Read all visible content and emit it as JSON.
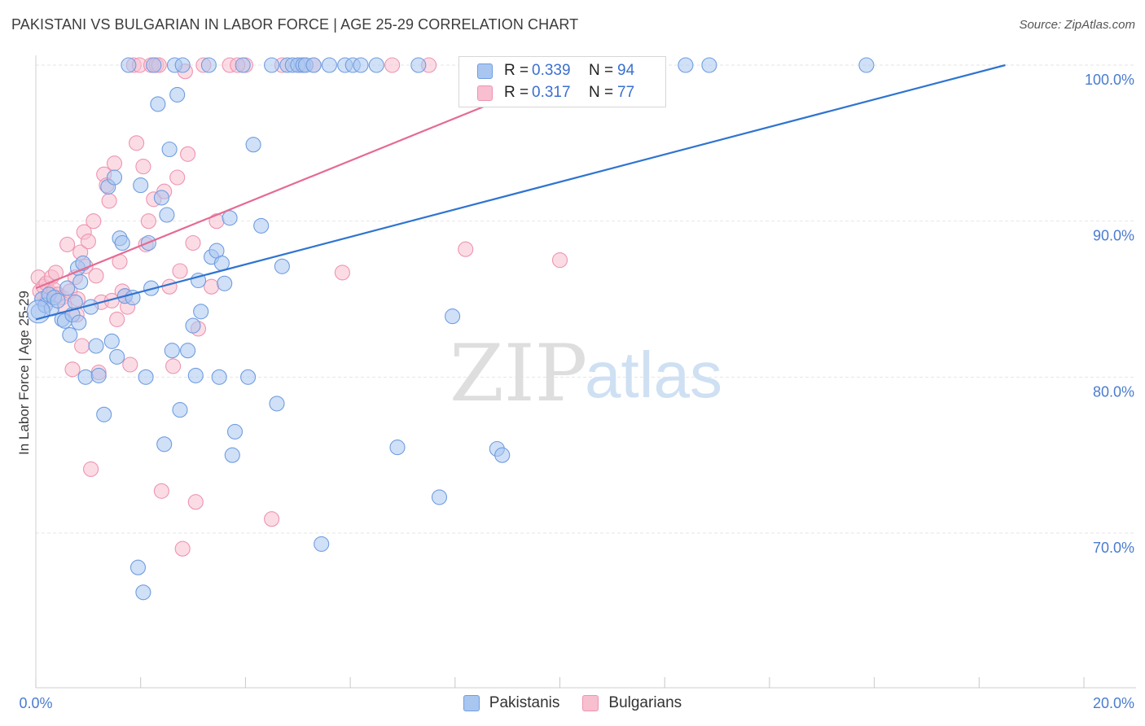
{
  "header": {
    "title": "PAKISTANI VS BULGARIAN IN LABOR FORCE | AGE 25-29 CORRELATION CHART",
    "source": "Source: ZipAtlas.com"
  },
  "watermark": {
    "zip": "ZIP",
    "atlas": "atlas"
  },
  "legend": {
    "rows": [
      {
        "r_label": "R =",
        "r_value": "0.339",
        "n_label": "N =",
        "n_value": "94",
        "color": "#7ea9e6"
      },
      {
        "r_label": "R =",
        "r_value": "0.317",
        "n_label": "N =",
        "n_value": "77",
        "color": "#f3a3bb"
      }
    ],
    "bottom": [
      "Pakistanis",
      "Bulgarians"
    ]
  },
  "colors": {
    "blue_fill": "#a9c6f1",
    "blue_stroke": "#6f9de0",
    "blue_line": "#2f74d0",
    "pink_fill": "#f7bfd0",
    "pink_stroke": "#ee94b1",
    "pink_line": "#e56b93",
    "grid": "#e6e6e6",
    "tick_text": "#4a7bd0"
  },
  "chart_data": {
    "type": "scatter",
    "title": "PAKISTANI VS BULGARIAN IN LABOR FORCE | AGE 25-29 CORRELATION CHART",
    "xlabel": "",
    "ylabel": "In Labor Force | Age 25-29",
    "xlim": [
      0,
      20
    ],
    "ylim": [
      60.5,
      100.8
    ],
    "x_tick_labels": [
      "0.0%",
      "20.0%"
    ],
    "y_ticks": [
      70,
      80,
      90,
      100
    ],
    "y_tick_labels": [
      "70.0%",
      "80.0%",
      "90.0%",
      "100.0%"
    ],
    "grid": true,
    "series": [
      {
        "name": "Pakistanis",
        "r": 0.339,
        "n": 94,
        "trend": {
          "x": [
            0,
            18.5
          ],
          "y": [
            83.7,
            100.0
          ]
        },
        "points": [
          [
            0.05,
            84.2
          ],
          [
            0.12,
            85.0
          ],
          [
            0.18,
            84.6
          ],
          [
            0.25,
            85.3
          ],
          [
            0.3,
            84.4
          ],
          [
            0.35,
            85.1
          ],
          [
            0.42,
            84.9
          ],
          [
            0.5,
            83.7
          ],
          [
            0.55,
            83.6
          ],
          [
            0.6,
            85.7
          ],
          [
            0.65,
            82.7
          ],
          [
            0.7,
            84.0
          ],
          [
            0.75,
            84.8
          ],
          [
            0.8,
            87.0
          ],
          [
            0.82,
            83.5
          ],
          [
            0.85,
            86.1
          ],
          [
            0.9,
            87.3
          ],
          [
            0.95,
            80.0
          ],
          [
            1.05,
            84.5
          ],
          [
            1.15,
            82.0
          ],
          [
            1.2,
            80.1
          ],
          [
            1.3,
            77.6
          ],
          [
            1.38,
            92.2
          ],
          [
            1.45,
            82.3
          ],
          [
            1.5,
            92.8
          ],
          [
            1.55,
            81.3
          ],
          [
            1.6,
            88.9
          ],
          [
            1.65,
            88.6
          ],
          [
            1.7,
            85.2
          ],
          [
            1.77,
            100.0
          ],
          [
            1.85,
            85.1
          ],
          [
            1.95,
            67.8
          ],
          [
            2.0,
            92.3
          ],
          [
            2.05,
            66.2
          ],
          [
            2.1,
            80.0
          ],
          [
            2.15,
            88.6
          ],
          [
            2.2,
            85.7
          ],
          [
            2.25,
            100.0
          ],
          [
            2.33,
            97.5
          ],
          [
            2.4,
            91.5
          ],
          [
            2.45,
            75.7
          ],
          [
            2.5,
            90.4
          ],
          [
            2.55,
            94.6
          ],
          [
            2.6,
            81.7
          ],
          [
            2.65,
            100.0
          ],
          [
            2.7,
            98.1
          ],
          [
            2.75,
            77.9
          ],
          [
            2.8,
            100.0
          ],
          [
            2.9,
            81.7
          ],
          [
            3.0,
            83.3
          ],
          [
            3.05,
            80.1
          ],
          [
            3.1,
            86.2
          ],
          [
            3.15,
            84.2
          ],
          [
            3.3,
            100.0
          ],
          [
            3.35,
            87.7
          ],
          [
            3.45,
            88.1
          ],
          [
            3.5,
            80.0
          ],
          [
            3.55,
            87.3
          ],
          [
            3.6,
            86.0
          ],
          [
            3.7,
            90.2
          ],
          [
            3.75,
            75.0
          ],
          [
            3.8,
            76.5
          ],
          [
            3.95,
            100.0
          ],
          [
            4.05,
            80.0
          ],
          [
            4.15,
            94.9
          ],
          [
            4.3,
            89.7
          ],
          [
            4.5,
            100.0
          ],
          [
            4.6,
            78.3
          ],
          [
            4.7,
            87.1
          ],
          [
            4.8,
            100.0
          ],
          [
            4.9,
            100.0
          ],
          [
            5.0,
            100.0
          ],
          [
            5.1,
            100.0
          ],
          [
            5.15,
            100.0
          ],
          [
            5.3,
            100.0
          ],
          [
            5.45,
            69.3
          ],
          [
            5.6,
            100.0
          ],
          [
            5.9,
            100.0
          ],
          [
            6.05,
            100.0
          ],
          [
            6.5,
            100.0
          ],
          [
            6.9,
            75.5
          ],
          [
            7.3,
            100.0
          ],
          [
            7.7,
            72.3
          ],
          [
            7.95,
            83.9
          ],
          [
            8.4,
            100.0
          ],
          [
            8.8,
            75.4
          ],
          [
            8.9,
            75.0
          ],
          [
            9.0,
            100.0
          ],
          [
            9.6,
            100.0
          ],
          [
            9.85,
            100.0
          ],
          [
            12.4,
            100.0
          ],
          [
            12.85,
            100.0
          ],
          [
            15.85,
            100.0
          ],
          [
            6.2,
            100.0
          ]
        ]
      },
      {
        "name": "Bulgarians",
        "r": 0.317,
        "n": 77,
        "trend": {
          "x": [
            0,
            10.5
          ],
          "y": [
            85.7,
            100.0
          ]
        },
        "points": [
          [
            0.05,
            86.4
          ],
          [
            0.08,
            85.5
          ],
          [
            0.12,
            85.0
          ],
          [
            0.15,
            85.8
          ],
          [
            0.2,
            86.0
          ],
          [
            0.22,
            84.9
          ],
          [
            0.28,
            85.4
          ],
          [
            0.3,
            86.4
          ],
          [
            0.35,
            85.6
          ],
          [
            0.38,
            86.7
          ],
          [
            0.42,
            85.3
          ],
          [
            0.5,
            85.1
          ],
          [
            0.55,
            84.5
          ],
          [
            0.6,
            88.5
          ],
          [
            0.65,
            85.5
          ],
          [
            0.7,
            80.5
          ],
          [
            0.75,
            86.4
          ],
          [
            0.78,
            84.0
          ],
          [
            0.8,
            85.0
          ],
          [
            0.85,
            88.0
          ],
          [
            0.88,
            82.0
          ],
          [
            0.92,
            89.3
          ],
          [
            0.95,
            87.1
          ],
          [
            1.0,
            88.7
          ],
          [
            1.05,
            74.1
          ],
          [
            1.1,
            90.0
          ],
          [
            1.15,
            86.5
          ],
          [
            1.2,
            80.3
          ],
          [
            1.25,
            84.8
          ],
          [
            1.3,
            93.0
          ],
          [
            1.35,
            92.3
          ],
          [
            1.4,
            91.3
          ],
          [
            1.45,
            84.9
          ],
          [
            1.5,
            93.7
          ],
          [
            1.55,
            83.7
          ],
          [
            1.6,
            87.4
          ],
          [
            1.65,
            85.5
          ],
          [
            1.7,
            85.2
          ],
          [
            1.75,
            84.5
          ],
          [
            1.8,
            80.8
          ],
          [
            1.87,
            100.0
          ],
          [
            1.92,
            95.0
          ],
          [
            1.98,
            100.0
          ],
          [
            2.05,
            93.5
          ],
          [
            2.1,
            88.5
          ],
          [
            2.15,
            90.0
          ],
          [
            2.2,
            100.0
          ],
          [
            2.25,
            91.4
          ],
          [
            2.3,
            100.0
          ],
          [
            2.35,
            100.0
          ],
          [
            2.4,
            72.7
          ],
          [
            2.45,
            91.9
          ],
          [
            2.55,
            85.8
          ],
          [
            2.62,
            80.7
          ],
          [
            2.7,
            92.8
          ],
          [
            2.75,
            86.8
          ],
          [
            2.8,
            69.0
          ],
          [
            2.85,
            99.6
          ],
          [
            2.9,
            94.3
          ],
          [
            3.0,
            88.6
          ],
          [
            3.05,
            72.0
          ],
          [
            3.1,
            83.1
          ],
          [
            3.2,
            100.0
          ],
          [
            3.35,
            85.8
          ],
          [
            3.45,
            90.0
          ],
          [
            3.7,
            100.0
          ],
          [
            4.0,
            100.0
          ],
          [
            4.5,
            70.9
          ],
          [
            4.7,
            100.0
          ],
          [
            5.05,
            100.0
          ],
          [
            5.3,
            100.0
          ],
          [
            5.85,
            86.7
          ],
          [
            6.8,
            100.0
          ],
          [
            7.5,
            100.0
          ],
          [
            8.2,
            88.2
          ],
          [
            10.0,
            87.5
          ],
          [
            3.85,
            100.0
          ]
        ]
      }
    ]
  }
}
